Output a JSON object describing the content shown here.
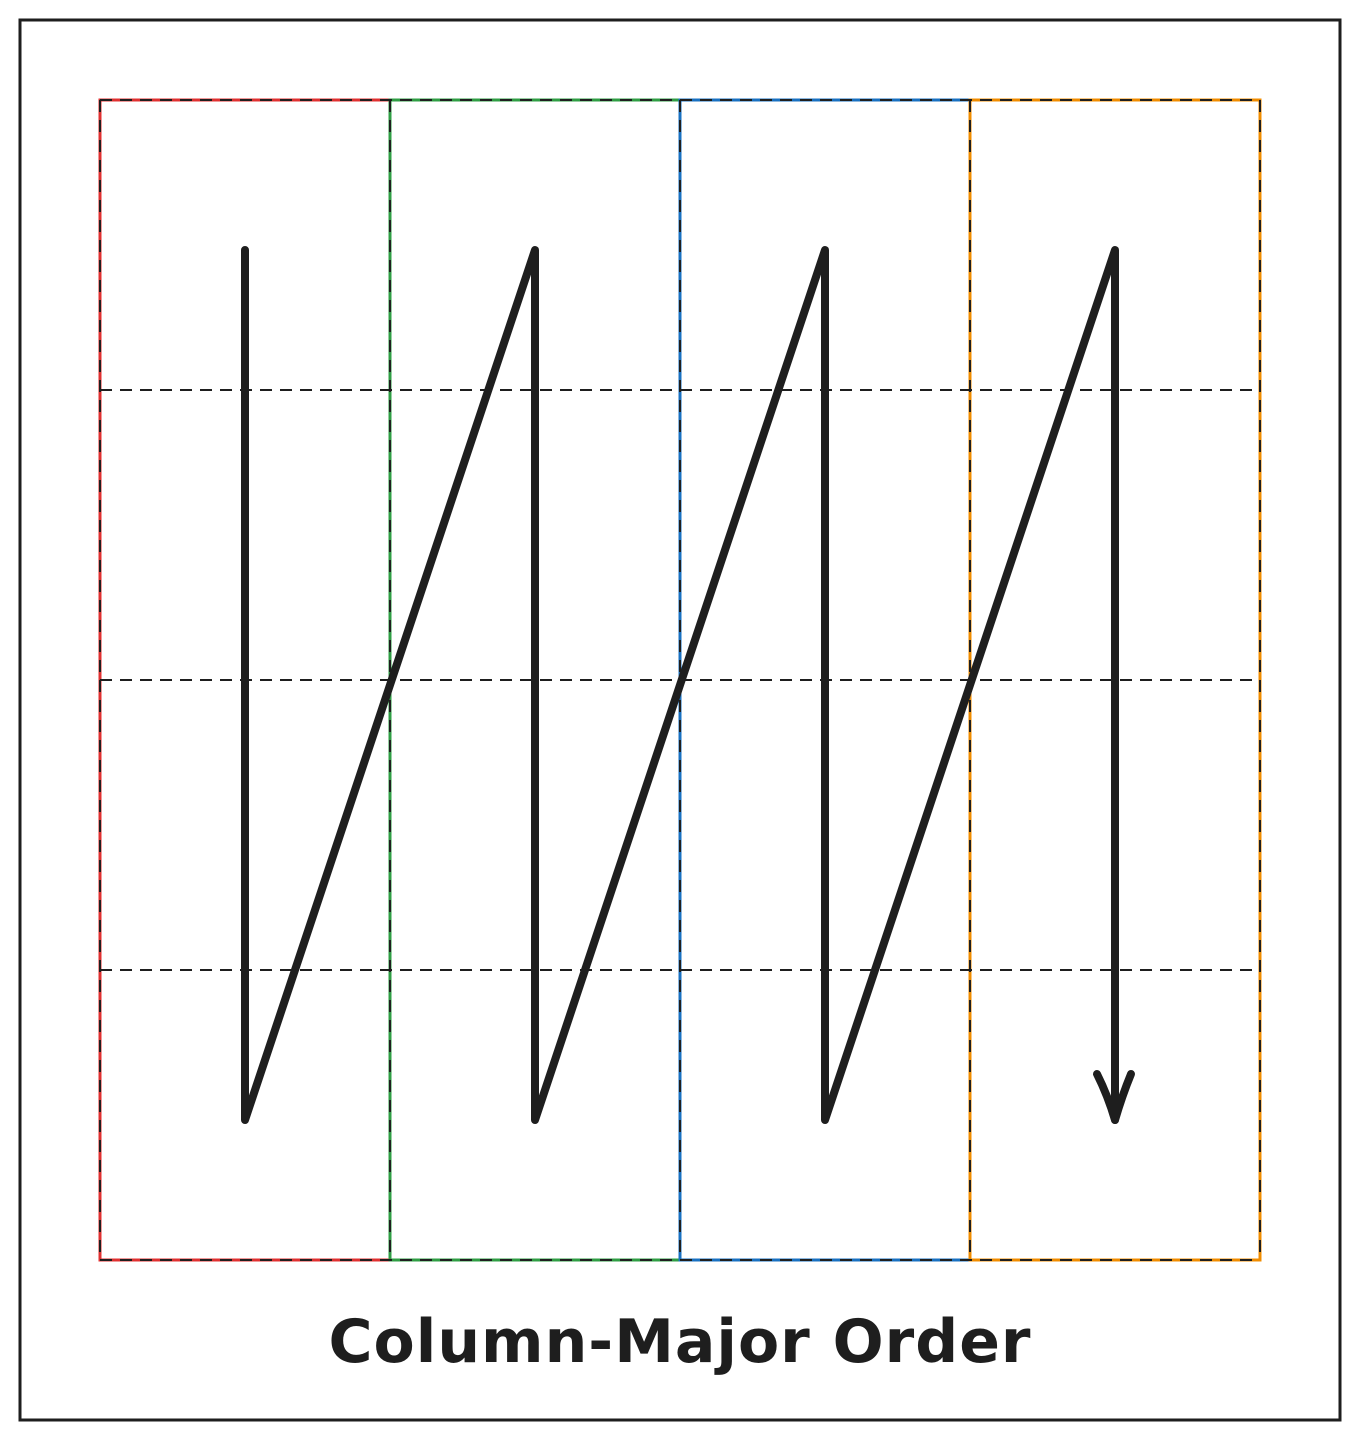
{
  "diagram": {
    "title": "Column-Major Order",
    "grid": {
      "columns": 4,
      "rows": 4,
      "column_colors": [
        "#e03131",
        "#2f9e44",
        "#1971c2",
        "#f08c00"
      ],
      "line_color": "#1e1e1e"
    },
    "traversal": {
      "order": "column-major",
      "direction": "top-to-bottom, then next column",
      "color": "#1e1e1e"
    }
  }
}
